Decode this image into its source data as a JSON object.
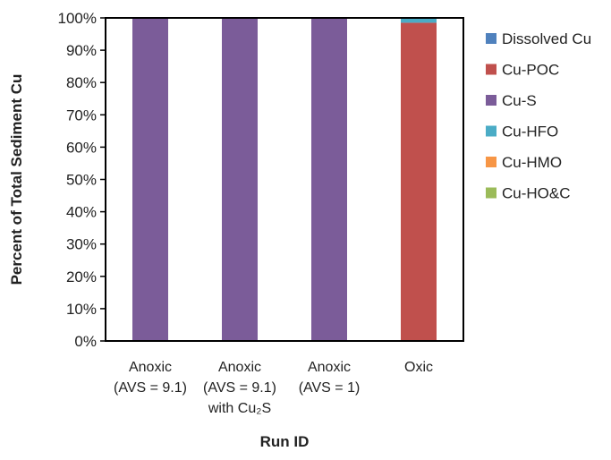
{
  "chart_data": {
    "type": "bar",
    "stacked": true,
    "percent_stacked": true,
    "xlabel": "Run ID",
    "ylabel": "Percent of Total Sediment Cu",
    "ylim": [
      0,
      100
    ],
    "yticks": [
      "0%",
      "10%",
      "20%",
      "30%",
      "40%",
      "50%",
      "60%",
      "70%",
      "80%",
      "90%",
      "100%"
    ],
    "grid": false,
    "legend_position": "right",
    "categories": [
      [
        "Anoxic",
        "(AVS = 9.1)"
      ],
      [
        "Anoxic",
        "(AVS = 9.1)",
        "with Cu₂S"
      ],
      [
        "Anoxic",
        "(AVS = 1)"
      ],
      [
        "Oxic"
      ]
    ],
    "series": [
      {
        "name": "Dissolved Cu",
        "color": "#4f81bd",
        "values": [
          0,
          0,
          0,
          0
        ]
      },
      {
        "name": "Cu-POC",
        "color": "#c0504d",
        "values": [
          0,
          0,
          0,
          98.5
        ]
      },
      {
        "name": "Cu-S",
        "color": "#7b5c99",
        "values": [
          100,
          100,
          100,
          0
        ]
      },
      {
        "name": "Cu-HFO",
        "color": "#4bacc6",
        "values": [
          0,
          0,
          0,
          1.5
        ]
      },
      {
        "name": "Cu-HMO",
        "color": "#f79646",
        "values": [
          0,
          0,
          0,
          0
        ]
      },
      {
        "name": "Cu-HO&C",
        "color": "#9bbb59",
        "values": [
          0,
          0,
          0,
          0
        ]
      }
    ]
  }
}
